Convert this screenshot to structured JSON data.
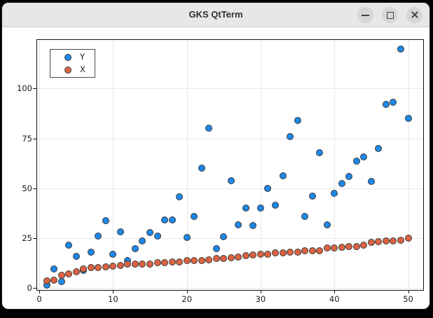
{
  "window": {
    "title": "GKS QtTerm",
    "controls": {
      "minimize_label": "minimize",
      "maximize_label": "maximize",
      "close_label": "close"
    }
  },
  "chart_data": {
    "type": "scatter",
    "title": "",
    "xlabel": "",
    "ylabel": "",
    "grid": true,
    "legend_position": "top-left",
    "x_ticks": [
      0,
      10,
      20,
      30,
      40,
      50
    ],
    "y_ticks": [
      0,
      25,
      50,
      75,
      100
    ],
    "x_range": [
      -0.29,
      52.04
    ],
    "y_range": [
      -0.98,
      124.37
    ],
    "marker_stroke": "#3a3a3a",
    "x": [
      1,
      2,
      3,
      4,
      5,
      6,
      7,
      8,
      9,
      10,
      11,
      12,
      13,
      14,
      15,
      16,
      17,
      18,
      19,
      20,
      21,
      22,
      23,
      24,
      25,
      26,
      27,
      28,
      29,
      30,
      31,
      32,
      33,
      34,
      35,
      36,
      37,
      38,
      39,
      40,
      41,
      42,
      43,
      44,
      45,
      46,
      47,
      48,
      49,
      50
    ],
    "series": [
      {
        "name": "Y",
        "color": "#1d88e8",
        "values": [
          1.5,
          9.4,
          3.2,
          21.6,
          15.8,
          8.7,
          17.9,
          26.1,
          33.7,
          17.0,
          28.2,
          13.9,
          19.8,
          23.7,
          27.8,
          26.0,
          34.2,
          34.2,
          45.7,
          25.5,
          36.0,
          60.0,
          80.0,
          19.8,
          25.7,
          53.8,
          31.6,
          40.0,
          31.3,
          40.0,
          50.0,
          41.5,
          56.1,
          75.8,
          84.0,
          35.8,
          46.0,
          67.8,
          31.6,
          47.5,
          52.4,
          55.9,
          63.7,
          65.8,
          53.6,
          70.0,
          92.2,
          93.0,
          119.9,
          84.9
        ]
      },
      {
        "name": "X",
        "color": "#dc6342",
        "values": [
          3.6,
          3.8,
          6.4,
          7.0,
          8.1,
          9.7,
          10.2,
          10.3,
          10.5,
          11.0,
          11.2,
          11.9,
          12.0,
          12.0,
          12.1,
          12.7,
          12.8,
          13.0,
          13.1,
          13.6,
          13.7,
          13.8,
          14.0,
          14.8,
          14.9,
          15.2,
          15.5,
          16.2,
          16.6,
          16.8,
          16.9,
          17.5,
          17.8,
          17.9,
          18.0,
          18.6,
          18.7,
          18.8,
          20.0,
          20.2,
          20.4,
          20.7,
          20.8,
          21.6,
          22.8,
          23.4,
          23.5,
          23.6,
          23.9,
          24.9
        ]
      }
    ]
  }
}
